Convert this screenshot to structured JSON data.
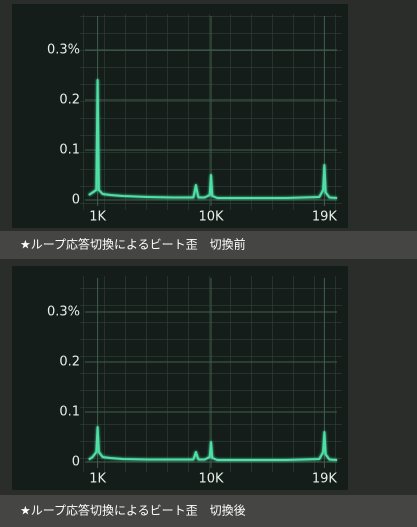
{
  "chart_data": [
    {
      "type": "line",
      "caption": "★ループ応答切換によるビート歪　切換前",
      "x": [
        0.3,
        0.6,
        0.9,
        1.0,
        1.1,
        1.4,
        2,
        3,
        5,
        7,
        8.6,
        8.8,
        9.0,
        9.5,
        9.9,
        10.0,
        10.1,
        10.5,
        13,
        16,
        18.6,
        18.9,
        19.0,
        19.1,
        19.4,
        20
      ],
      "values": [
        0.01,
        0.015,
        0.02,
        0.24,
        0.02,
        0.012,
        0.01,
        0.008,
        0.006,
        0.005,
        0.005,
        0.03,
        0.005,
        0.005,
        0.01,
        0.05,
        0.008,
        0.004,
        0.004,
        0.004,
        0.006,
        0.02,
        0.07,
        0.015,
        0.005,
        0.004
      ],
      "color": "#4fe0a8",
      "xlim": [
        0,
        20
      ],
      "ylim": [
        0,
        0.34
      ],
      "xticks": [
        {
          "value": 1,
          "label": "1K"
        },
        {
          "value": 10,
          "label": "10K"
        },
        {
          "value": 19,
          "label": "19K"
        }
      ],
      "yticks": [
        0,
        0.1,
        0.2,
        {
          "value": 0.3,
          "label": "0.3%"
        }
      ],
      "grid": true
    },
    {
      "type": "line",
      "caption": "★ループ応答切換によるビート歪　切換後",
      "x": [
        0.3,
        0.6,
        0.9,
        1.0,
        1.1,
        1.4,
        2,
        3,
        5,
        7,
        8.6,
        8.8,
        9.0,
        9.5,
        9.9,
        10.0,
        10.1,
        10.5,
        13,
        16,
        18.6,
        18.9,
        19.0,
        19.1,
        19.4,
        20
      ],
      "values": [
        0.005,
        0.01,
        0.02,
        0.07,
        0.02,
        0.01,
        0.008,
        0.006,
        0.005,
        0.005,
        0.005,
        0.02,
        0.005,
        0.005,
        0.01,
        0.04,
        0.008,
        0.004,
        0.004,
        0.004,
        0.006,
        0.02,
        0.06,
        0.015,
        0.005,
        0.004
      ],
      "color": "#4fe0a8",
      "xlim": [
        0,
        20
      ],
      "ylim": [
        0,
        0.34
      ],
      "xticks": [
        {
          "value": 1,
          "label": "1K"
        },
        {
          "value": 10,
          "label": "10K"
        },
        {
          "value": 19,
          "label": "19K"
        }
      ],
      "yticks": [
        0,
        0.1,
        0.2,
        {
          "value": 0.3,
          "label": "0.3%"
        }
      ],
      "grid": true
    }
  ]
}
